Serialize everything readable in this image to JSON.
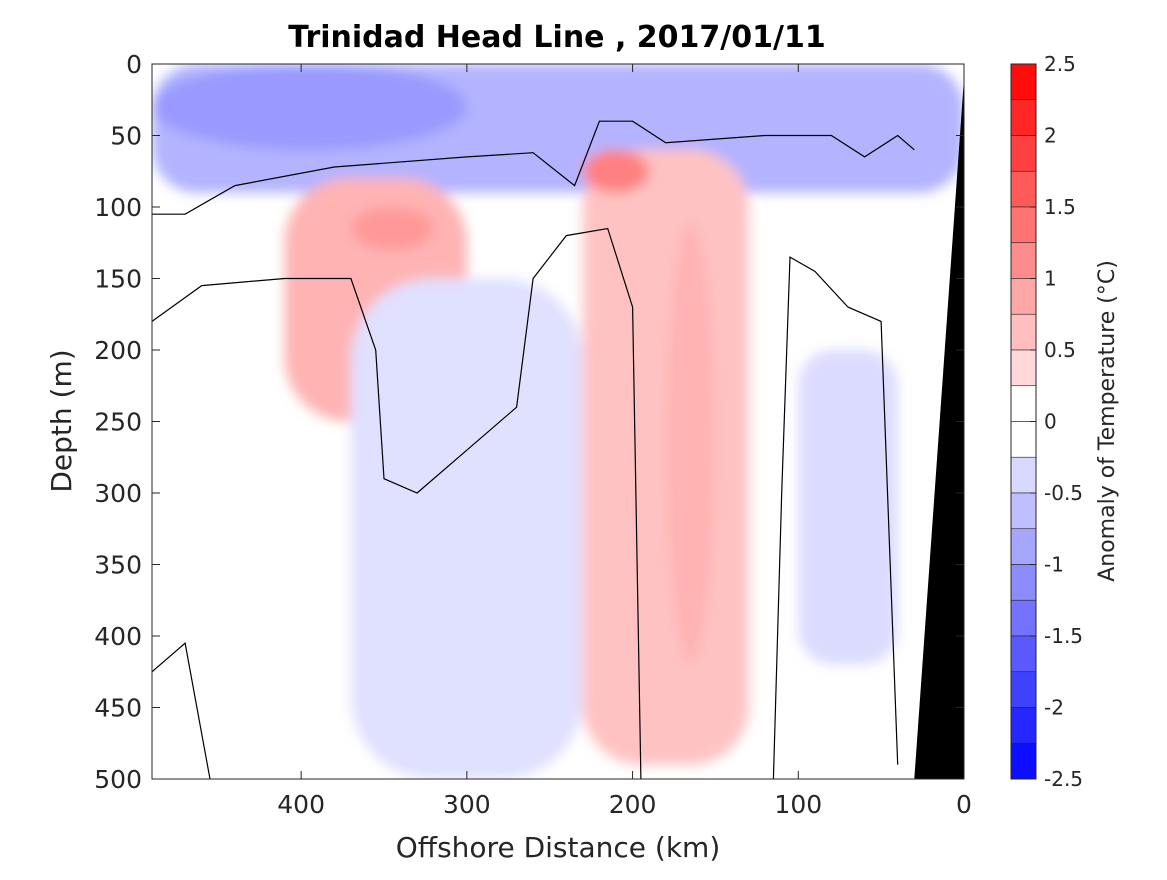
{
  "chart_data": {
    "type": "heatmap",
    "title": "Trinidad Head Line , 2017/01/11",
    "xlabel": "Offshore Distance (km)",
    "ylabel": "Depth (m)",
    "xlim": [
      490,
      0
    ],
    "ylim": [
      0,
      500
    ],
    "y_reversed": true,
    "x_reversed": true,
    "x_ticks": [
      400,
      300,
      200,
      100,
      0
    ],
    "y_ticks": [
      0,
      50,
      100,
      150,
      200,
      250,
      300,
      350,
      400,
      450,
      500
    ],
    "colorbar": {
      "label": "Anomaly of Temperature (°C)",
      "range": [
        -2.5,
        2.5
      ],
      "step": 0.25,
      "ticks": [
        2.5,
        2,
        1.5,
        1,
        0.5,
        0,
        -0.5,
        -1,
        -1.5,
        -2,
        -2.5
      ],
      "colormap": "blue-white-red",
      "neg_color": "#0000ff",
      "pos_color": "#ff0000"
    },
    "features": [
      {
        "type": "blob",
        "name": "surface cold layer",
        "value": -0.75,
        "x": [
          490,
          0
        ],
        "y": [
          0,
          90
        ]
      },
      {
        "type": "blob",
        "name": "subsurface warm core",
        "value": 0.75,
        "x": [
          410,
          300
        ],
        "y": [
          80,
          250
        ]
      },
      {
        "type": "blob",
        "name": "warm column",
        "value": 0.6,
        "x": [
          230,
          130
        ],
        "y": [
          60,
          490
        ]
      },
      {
        "type": "blob",
        "name": "deep cool column",
        "value": -0.3,
        "x": [
          370,
          230
        ],
        "y": [
          150,
          500
        ]
      },
      {
        "type": "blob",
        "name": "nearshore cool column",
        "value": -0.35,
        "x": [
          100,
          40
        ],
        "y": [
          200,
          420
        ]
      }
    ],
    "bathymetry": {
      "type": "area",
      "color": "#000000",
      "x": [
        0,
        0,
        30
      ],
      "y": [
        10,
        500,
        500
      ]
    },
    "grid": false
  }
}
